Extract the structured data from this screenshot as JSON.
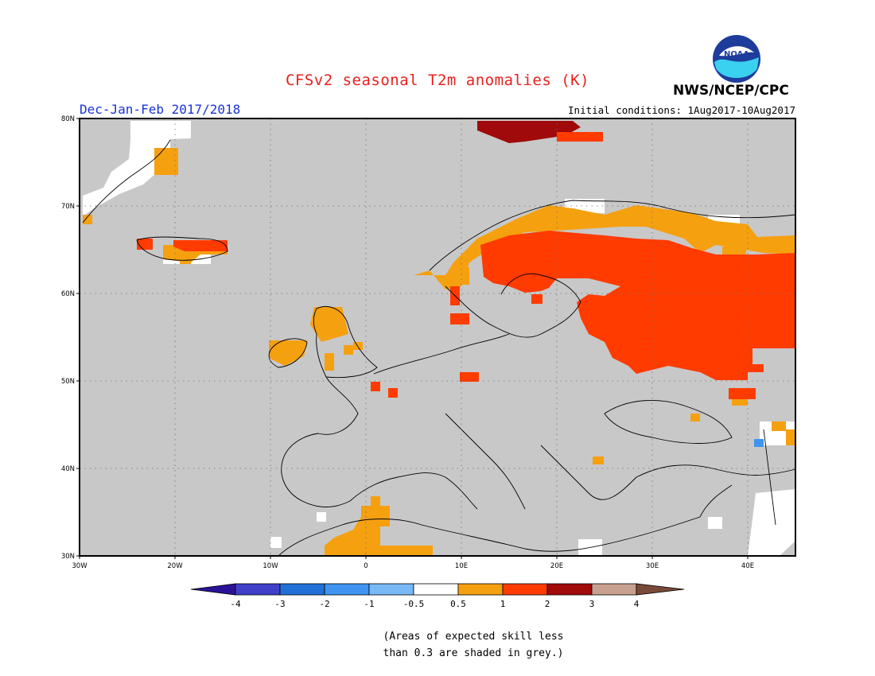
{
  "header": {
    "title": "CFSv2 seasonal T2m anomalies (K)",
    "agency": "NWS/NCEP/CPC",
    "logo_text": "NOAA",
    "season": "Dec-Jan-Feb 2017/2018",
    "initial_conditions": "Initial conditions: 1Aug2017-10Aug2017"
  },
  "map": {
    "projection": "lon-lat",
    "lon_range": [
      -30,
      45
    ],
    "lat_range": [
      30,
      80
    ],
    "lat_ticks": [
      "80N",
      "70N",
      "60N",
      "50N",
      "40N",
      "30N"
    ],
    "lon_ticks": [
      "30W",
      "20W",
      "10W",
      "0",
      "10E",
      "20E",
      "30E",
      "40E"
    ],
    "background_color": "#c8c8c8",
    "grid": "dotted"
  },
  "colorbar": {
    "labels": [
      "-4",
      "-3",
      "-2",
      "-1",
      "-0.5",
      "0.5",
      "1",
      "2",
      "3",
      "4"
    ],
    "colors": [
      "#2a1296",
      "#3f3fc8",
      "#2170d8",
      "#3e94f0",
      "#78b8f4",
      "#ffffff",
      "#f5a00f",
      "#ff3b00",
      "#a00a0a",
      "#c8a090",
      "#7a4a38"
    ]
  },
  "footnote": {
    "line1": "(Areas of expected skill less",
    "line2": "than 0.3 are shaded in grey.)"
  }
}
